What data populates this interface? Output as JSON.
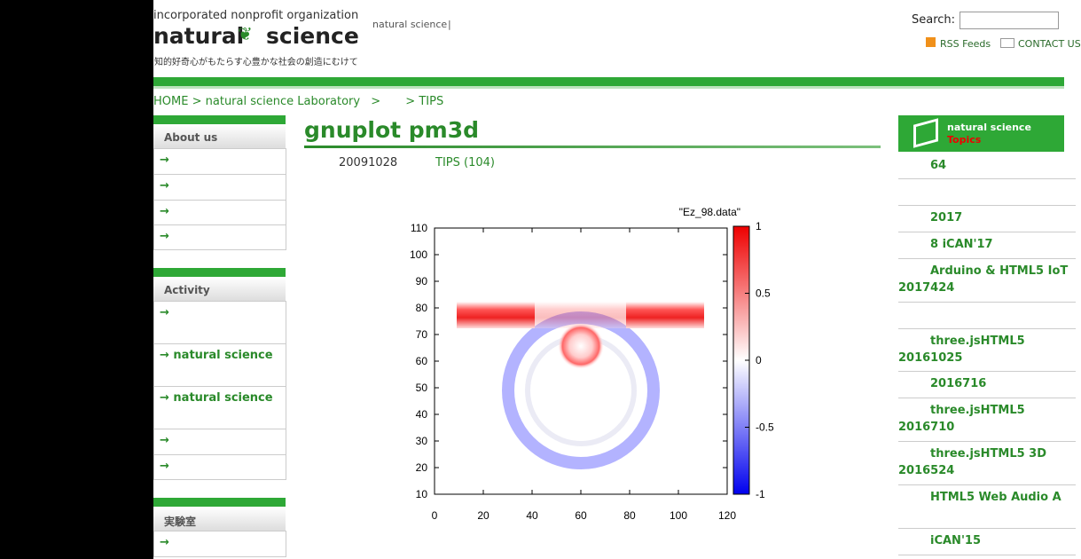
{
  "header": {
    "org": "incorporated nonprofit organization",
    "logo_left": "natural",
    "logo_right": "science",
    "tagline": "知的好奇心がもたらす心豊かな社会の創造にむけて",
    "nav": "natural science",
    "nav_sep": "|",
    "search_label": "Search:",
    "rss": "RSS Feeds",
    "contact": "CONTACT US"
  },
  "breadcrumb": {
    "items": [
      "HOME",
      "natural science Laboratory",
      "TIPS"
    ],
    "separator": ">"
  },
  "left_sidebar": [
    {
      "title": "About us",
      "items": [
        "→",
        "→",
        "→",
        "→"
      ]
    },
    {
      "title": "Activity",
      "items": [
        "→",
        "→  natural science",
        "→  natural science",
        "→",
        "→"
      ]
    },
    {
      "title": "実験室",
      "items": [
        "→"
      ]
    }
  ],
  "article": {
    "title": "gnuplot pm3d",
    "date": "20091028",
    "category": "TIPS (104)"
  },
  "plot": {
    "title": "\"Ez_98.data\"",
    "xlim": [
      0,
      120
    ],
    "xticks": [
      0,
      20,
      40,
      60,
      80,
      100,
      120
    ],
    "ylim": [
      10,
      110
    ],
    "yticks": [
      10,
      20,
      30,
      40,
      50,
      60,
      70,
      80,
      90,
      100,
      110
    ],
    "clim": [
      -1,
      1
    ],
    "cticks": [
      1,
      0.5,
      0,
      -0.5,
      -1
    ]
  },
  "right_sidebar": {
    "title": "natural science",
    "subtitle": "Topics",
    "items": [
      [
        "64"
      ],
      [
        "2017"
      ],
      [
        "8 iCAN'17"
      ],
      [
        "Arduino & HTML5 IoT",
        "2017424"
      ],
      [
        "three.jsHTML5",
        "20161025"
      ],
      [
        "2016716"
      ],
      [
        "three.jsHTML5",
        "2016710"
      ],
      [
        "three.jsHTML5 3D",
        "2016524"
      ],
      [
        "HTML5  Web Audio A"
      ],
      [
        "iCAN'15"
      ]
    ]
  }
}
